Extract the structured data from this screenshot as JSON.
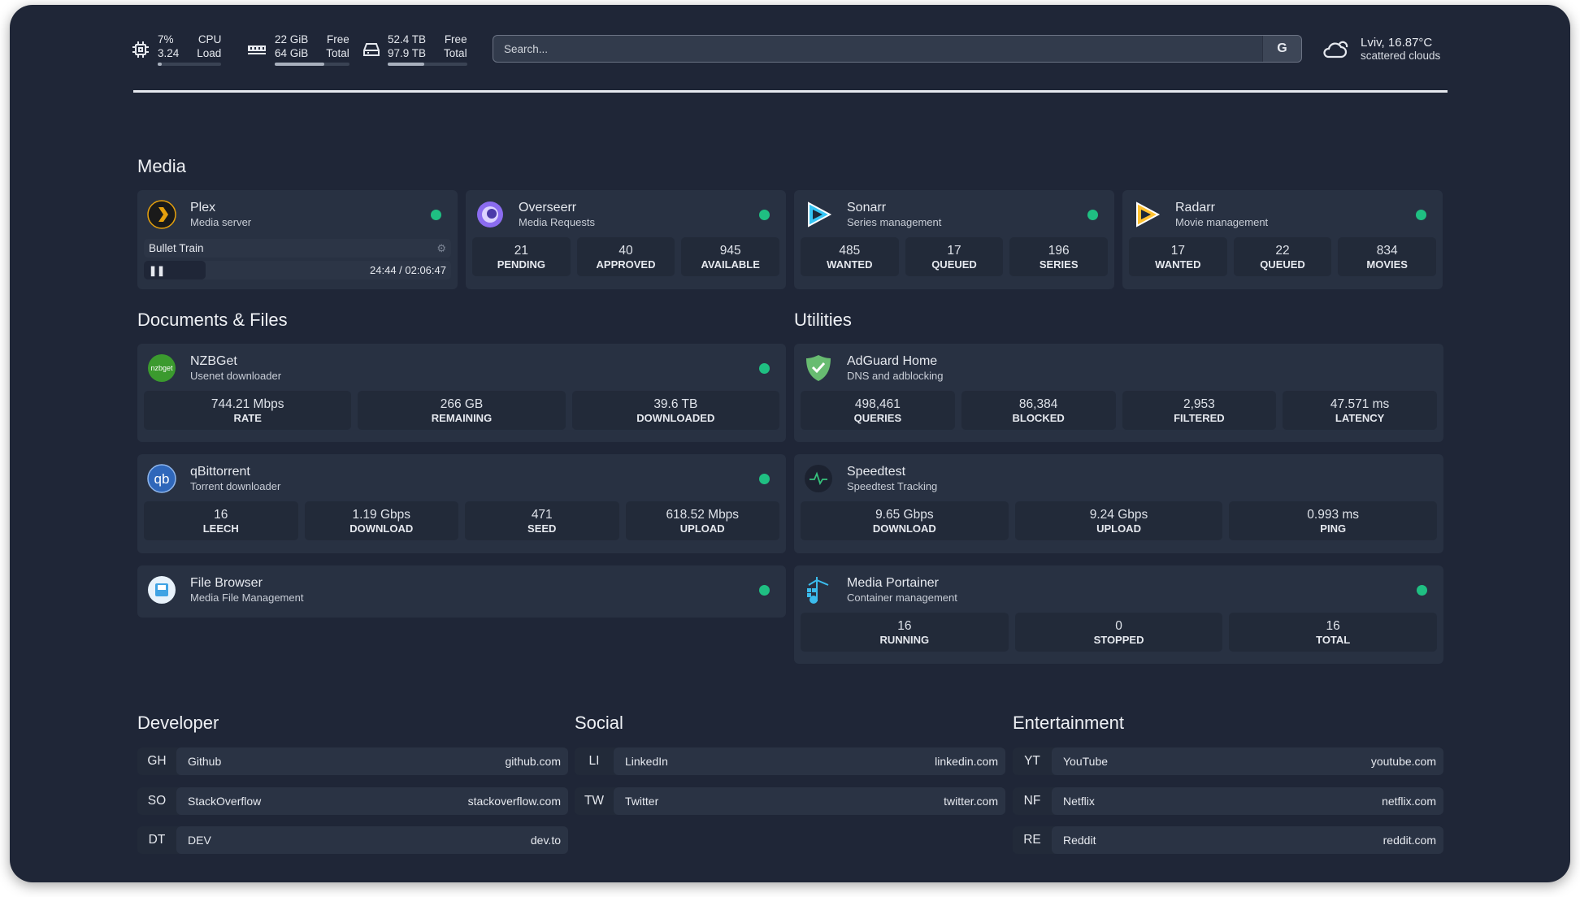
{
  "top": {
    "cpu": {
      "v1": "7%",
      "l1": "CPU",
      "v2": "3.24",
      "l2": "Load",
      "pct": 7
    },
    "mem": {
      "v1": "22 GiB",
      "l1": "Free",
      "v2": "64 GiB",
      "l2": "Total",
      "pct": 66
    },
    "disk": {
      "v1": "52.4 TB",
      "l1": "Free",
      "v2": "97.9 TB",
      "l2": "Total",
      "pct": 46
    },
    "search": {
      "placeholder": "Search...",
      "engine": "G"
    },
    "weather": {
      "line1": "Lviv, 16.87°C",
      "line2": "scattered clouds"
    }
  },
  "colors": {
    "status_up": "#1fbf82",
    "background": "#1f2637",
    "card": "#283142"
  },
  "media": {
    "title": "Media",
    "plex": {
      "name": "Plex",
      "desc": "Media server",
      "now_playing": "Bullet Train",
      "time": "24:44 / 02:06:47",
      "progress": 20
    },
    "cards": [
      {
        "name": "Overseerr",
        "desc": "Media Requests",
        "stats": [
          {
            "v": "21",
            "l": "PENDING"
          },
          {
            "v": "40",
            "l": "APPROVED"
          },
          {
            "v": "945",
            "l": "AVAILABLE"
          }
        ]
      },
      {
        "name": "Sonarr",
        "desc": "Series management",
        "stats": [
          {
            "v": "485",
            "l": "WANTED"
          },
          {
            "v": "17",
            "l": "QUEUED"
          },
          {
            "v": "196",
            "l": "SERIES"
          }
        ]
      },
      {
        "name": "Radarr",
        "desc": "Movie management",
        "stats": [
          {
            "v": "17",
            "l": "WANTED"
          },
          {
            "v": "22",
            "l": "QUEUED"
          },
          {
            "v": "834",
            "l": "MOVIES"
          }
        ]
      }
    ]
  },
  "docs": {
    "title": "Documents & Files",
    "nzbget": {
      "name": "NZBGet",
      "desc": "Usenet downloader",
      "icon_text": "nzbget",
      "stats": [
        {
          "v": "744.21 Mbps",
          "l": "RATE"
        },
        {
          "v": "266 GB",
          "l": "REMAINING"
        },
        {
          "v": "39.6 TB",
          "l": "DOWNLOADED"
        }
      ]
    },
    "qbit": {
      "name": "qBittorrent",
      "desc": "Torrent downloader",
      "icon_text": "qb",
      "stats": [
        {
          "v": "16",
          "l": "LEECH"
        },
        {
          "v": "1.19 Gbps",
          "l": "DOWNLOAD"
        },
        {
          "v": "471",
          "l": "SEED"
        },
        {
          "v": "618.52 Mbps",
          "l": "UPLOAD"
        }
      ]
    },
    "filebrowser": {
      "name": "File Browser",
      "desc": "Media File Management"
    }
  },
  "util": {
    "title": "Utilities",
    "adguard": {
      "name": "AdGuard Home",
      "desc": "DNS and adblocking",
      "stats": [
        {
          "v": "498,461",
          "l": "QUERIES"
        },
        {
          "v": "86,384",
          "l": "BLOCKED"
        },
        {
          "v": "2,953",
          "l": "FILTERED"
        },
        {
          "v": "47.571 ms",
          "l": "LATENCY"
        }
      ]
    },
    "speedtest": {
      "name": "Speedtest",
      "desc": "Speedtest Tracking",
      "stats": [
        {
          "v": "9.65 Gbps",
          "l": "DOWNLOAD"
        },
        {
          "v": "9.24 Gbps",
          "l": "UPLOAD"
        },
        {
          "v": "0.993 ms",
          "l": "PING"
        }
      ]
    },
    "portainer": {
      "name": "Media Portainer",
      "desc": "Container management",
      "stats": [
        {
          "v": "16",
          "l": "RUNNING"
        },
        {
          "v": "0",
          "l": "STOPPED"
        },
        {
          "v": "16",
          "l": "TOTAL"
        }
      ]
    }
  },
  "bookmarks": [
    {
      "title": "Developer",
      "items": [
        {
          "abbr": "GH",
          "name": "Github",
          "url": "github.com"
        },
        {
          "abbr": "SO",
          "name": "StackOverflow",
          "url": "stackoverflow.com"
        },
        {
          "abbr": "DT",
          "name": "DEV",
          "url": "dev.to"
        }
      ]
    },
    {
      "title": "Social",
      "items": [
        {
          "abbr": "LI",
          "name": "LinkedIn",
          "url": "linkedin.com"
        },
        {
          "abbr": "TW",
          "name": "Twitter",
          "url": "twitter.com"
        }
      ]
    },
    {
      "title": "Entertainment",
      "items": [
        {
          "abbr": "YT",
          "name": "YouTube",
          "url": "youtube.com"
        },
        {
          "abbr": "NF",
          "name": "Netflix",
          "url": "netflix.com"
        },
        {
          "abbr": "RE",
          "name": "Reddit",
          "url": "reddit.com"
        }
      ]
    }
  ]
}
